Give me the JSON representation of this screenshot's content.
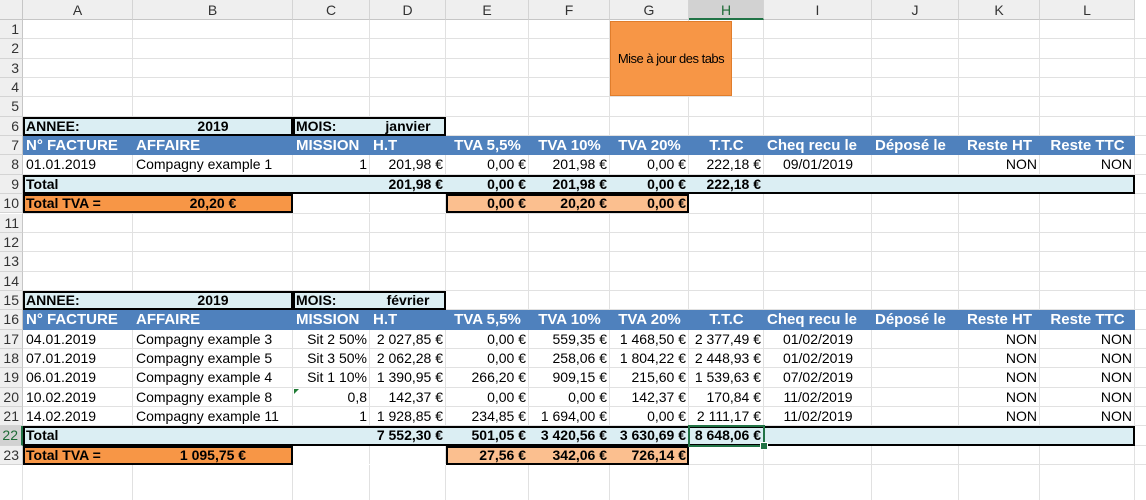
{
  "columns": [
    "A",
    "B",
    "C",
    "D",
    "E",
    "F",
    "G",
    "H",
    "I",
    "J",
    "K",
    "L"
  ],
  "selected_column": "H",
  "rows": [
    "1",
    "2",
    "3",
    "4",
    "5",
    "6",
    "7",
    "8",
    "9",
    "10",
    "11",
    "12",
    "13",
    "14",
    "15",
    "16",
    "17",
    "18",
    "19",
    "20",
    "21",
    "22",
    "23"
  ],
  "selected_row": "22",
  "macro_button": "Mise à jour des tabs",
  "section1": {
    "annee_label": "ANNEE:",
    "annee_value": "2019",
    "mois_label": "MOIS:",
    "mois_value": "janvier",
    "headers": [
      "N° FACTURE",
      "AFFAIRE",
      "MISSION",
      "H.T",
      "TVA 5,5%",
      "TVA 10%",
      "TVA 20%",
      "T.T.C",
      "Cheq recu le",
      "Déposé le",
      "Reste HT",
      "Reste TTC"
    ],
    "rows": [
      {
        "facture": "01.01.2019",
        "affaire": "Compagny example 1",
        "mission": "1",
        "ht": "201,98 €",
        "tva55": "0,00 €",
        "tva10": "201,98 €",
        "tva20": "0,00 €",
        "ttc": "222,18 €",
        "cheq": "09/01/2019",
        "depose": "",
        "reste_ht": "NON",
        "reste_ttc": "NON"
      }
    ],
    "total": {
      "label": "Total",
      "ht": "201,98 €",
      "tva55": "0,00 €",
      "tva10": "201,98 €",
      "tva20": "0,00 €",
      "ttc": "222,18 €"
    },
    "total_tva": {
      "label": "Total TVA  =",
      "value": "20,20 €",
      "tva55": "0,00 €",
      "tva10": "20,20 €",
      "tva20": "0,00 €"
    }
  },
  "section2": {
    "annee_label": "ANNEE:",
    "annee_value": "2019",
    "mois_label": "MOIS:",
    "mois_value": "février",
    "headers": [
      "N° FACTURE",
      "AFFAIRE",
      "MISSION",
      "H.T",
      "TVA 5,5%",
      "TVA 10%",
      "TVA 20%",
      "T.T.C",
      "Cheq recu le",
      "Déposé le",
      "Reste HT",
      "Reste TTC"
    ],
    "rows": [
      {
        "facture": "04.01.2019",
        "affaire": "Compagny example 3",
        "mission": "Sit 2  50%",
        "ht": "2 027,85 €",
        "tva55": "0,00 €",
        "tva10": "559,35 €",
        "tva20": "1 468,50 €",
        "ttc": "2 377,49 €",
        "cheq": "01/02/2019",
        "depose": "",
        "reste_ht": "NON",
        "reste_ttc": "NON"
      },
      {
        "facture": "07.01.2019",
        "affaire": "Compagny example 5",
        "mission": "Sit 3  50%",
        "ht": "2 062,28 €",
        "tva55": "0,00 €",
        "tva10": "258,06 €",
        "tva20": "1 804,22 €",
        "ttc": "2 448,93 €",
        "cheq": "01/02/2019",
        "depose": "",
        "reste_ht": "NON",
        "reste_ttc": "NON"
      },
      {
        "facture": "06.01.2019",
        "affaire": "Compagny example 4",
        "mission": "Sit 1  10%",
        "ht": "1 390,95 €",
        "tva55": "266,20 €",
        "tva10": "909,15 €",
        "tva20": "215,60 €",
        "ttc": "1 539,63 €",
        "cheq": "07/02/2019",
        "depose": "",
        "reste_ht": "NON",
        "reste_ttc": "NON"
      },
      {
        "facture": "10.02.2019",
        "affaire": "Compagny example 8",
        "mission": "0,8",
        "ht": "142,37 €",
        "tva55": "0,00 €",
        "tva10": "0,00 €",
        "tva20": "142,37 €",
        "ttc": "170,84 €",
        "cheq": "11/02/2019",
        "depose": "",
        "reste_ht": "NON",
        "reste_ttc": "NON"
      },
      {
        "facture": "14.02.2019",
        "affaire": "Compagny example 11",
        "mission": "1",
        "ht": "1 928,85 €",
        "tva55": "234,85 €",
        "tva10": "1 694,00 €",
        "tva20": "0,00 €",
        "ttc": "2 111,17 €",
        "cheq": "11/02/2019",
        "depose": "",
        "reste_ht": "NON",
        "reste_ttc": "NON"
      }
    ],
    "total": {
      "label": "Total",
      "ht": "7 552,30 €",
      "tva55": "501,05 €",
      "tva10": "3 420,56 €",
      "tva20": "3 630,69 €",
      "ttc": "8 648,06 €"
    },
    "total_tva": {
      "label": "Total TVA  =",
      "value": "1 095,75 €",
      "tva55": "27,56 €",
      "tva10": "342,06 €",
      "tva20": "726,14 €"
    }
  },
  "colors": {
    "header_blue": "#4f81bd",
    "light_blue": "#dbeef3",
    "orange": "#f79646",
    "peach": "#fbbf8f",
    "selection_green": "#217346"
  }
}
